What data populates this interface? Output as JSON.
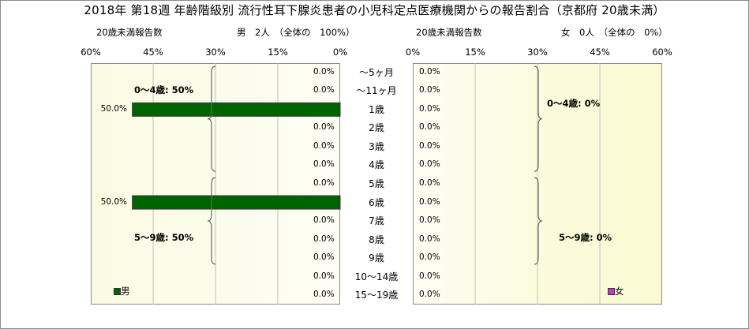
{
  "title": "2018年 第18週 年齢階級別 流行性耳下腺炎患者の小児科定点医療機関からの報告割合（京都府 20歳未満）",
  "left": {
    "count_label": "20歳未満報告数",
    "header": "男　2人　（全体の　100%）",
    "legend": "男",
    "groups": [
      "0～4歳: 50%",
      "5～9歳: 50%"
    ]
  },
  "right": {
    "count_label": "20歳未満報告数",
    "header": "女　0人　（全体の　0%）",
    "legend": "女",
    "groups": [
      "0～4歳: 0%",
      "5～9歳: 0%"
    ]
  },
  "ticks_left": [
    "60%",
    "45%",
    "30%",
    "15%",
    "0%"
  ],
  "ticks_right": [
    "0%",
    "15%",
    "30%",
    "45%",
    "60%"
  ],
  "colors": {
    "male": "#006400",
    "female": "#cc33cc",
    "bracket": "#666666",
    "grid": "#c0c0c0"
  },
  "chart_data": [
    {
      "type": "bar",
      "title": "",
      "series": [
        {
          "name": "男",
          "values": [
            0,
            0,
            50,
            0,
            0,
            0,
            0,
            50,
            0,
            0,
            0,
            0,
            0
          ]
        }
      ],
      "categories": [
        "～5ヶ月",
        "～11ヶ月",
        "1歳",
        "2歳",
        "3歳",
        "4歳",
        "5歳",
        "6歳",
        "7歳",
        "8歳",
        "9歳",
        "10～14歳",
        "15～19歳"
      ],
      "value_labels": [
        "0.0%",
        "0.0%",
        "50.0%",
        "0.0%",
        "0.0%",
        "0.0%",
        "0.0%",
        "50.0%",
        "0.0%",
        "0.0%",
        "0.0%",
        "0.0%",
        "0.0%"
      ],
      "xlim": [
        60,
        0
      ],
      "orientation": "horizontal",
      "grid": true
    },
    {
      "type": "bar",
      "title": "",
      "series": [
        {
          "name": "女",
          "values": [
            0,
            0,
            0,
            0,
            0,
            0,
            0,
            0,
            0,
            0,
            0,
            0,
            0
          ]
        }
      ],
      "categories": [
        "～5ヶ月",
        "～11ヶ月",
        "1歳",
        "2歳",
        "3歳",
        "4歳",
        "5歳",
        "6歳",
        "7歳",
        "8歳",
        "9歳",
        "10～14歳",
        "15～19歳"
      ],
      "value_labels": [
        "0.0%",
        "0.0%",
        "0.0%",
        "0.0%",
        "0.0%",
        "0.0%",
        "0.0%",
        "0.0%",
        "0.0%",
        "0.0%",
        "0.0%",
        "0.0%",
        "0.0%"
      ],
      "xlim": [
        0,
        60
      ],
      "orientation": "horizontal",
      "grid": true
    }
  ]
}
